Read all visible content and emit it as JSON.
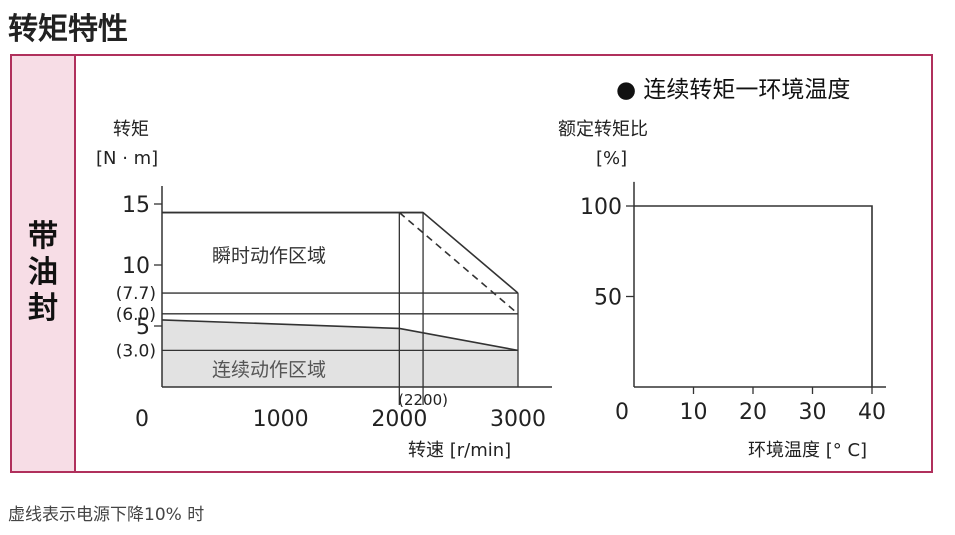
{
  "page": {
    "title": "转矩特性",
    "side_label": [
      "带",
      "油",
      "封"
    ],
    "footnote": "虚线表示电源下降10% 时"
  },
  "colors": {
    "frame": "#b0305c",
    "tab_bg": "#f7dde6",
    "continuous_fill": "#e2e2e2",
    "line": "#333333"
  },
  "chart_data": [
    {
      "type": "line",
      "ylabel": "转矩",
      "yunit": "[N · m]",
      "xlabel": "转速 [r/min]",
      "xlim": [
        0,
        3000
      ],
      "ylim": [
        0,
        15
      ],
      "x_ticks": [
        "0",
        "1000",
        "2000",
        "3000"
      ],
      "y_ticks": [
        "5",
        "10",
        "15"
      ],
      "y_ref_labels": [
        {
          "value": 7.7,
          "label": "(7.7)"
        },
        {
          "value": 6.0,
          "label": "(6.0)"
        },
        {
          "value": 3.0,
          "label": "(3.0)"
        }
      ],
      "x_ref_labels": [
        {
          "value": 2200,
          "label": "(2200)"
        }
      ],
      "regions": [
        {
          "name": "瞬时动作区域",
          "points": [
            [
              0,
              14.3
            ],
            [
              2200,
              14.3
            ],
            [
              3000,
              7.7
            ],
            [
              3000,
              0
            ],
            [
              0,
              0
            ]
          ]
        },
        {
          "name": "连续动作区域",
          "points": [
            [
              0,
              5.5
            ],
            [
              2000,
              4.8
            ],
            [
              3000,
              3.0
            ],
            [
              3000,
              0
            ],
            [
              0,
              0
            ]
          ]
        }
      ],
      "series": [
        {
          "style": "solid",
          "points": [
            [
              0,
              14.3
            ],
            [
              2200,
              14.3
            ],
            [
              3000,
              7.7
            ]
          ]
        },
        {
          "style": "dashed",
          "points": [
            [
              2000,
              14.3
            ],
            [
              3000,
              6.0
            ]
          ]
        },
        {
          "style": "solid",
          "points": [
            [
              0,
              5.5
            ],
            [
              2000,
              4.8
            ],
            [
              3000,
              3.0
            ]
          ]
        }
      ],
      "reference_lines": {
        "horizontal": [
          7.7,
          6.0,
          3.0
        ],
        "vertical": [
          2000,
          2200
        ]
      }
    },
    {
      "type": "line",
      "title": "● 连续转矩一环境温度",
      "ylabel": "额定转矩比",
      "yunit": "[%]",
      "xlabel": "环境温度 [° C]",
      "xlim": [
        0,
        40
      ],
      "ylim": [
        0,
        110
      ],
      "x_ticks": [
        "0",
        "10",
        "20",
        "30",
        "40"
      ],
      "y_ticks": [
        "50",
        "100"
      ],
      "series": [
        {
          "style": "solid",
          "points": [
            [
              0,
              100
            ],
            [
              40,
              100
            ],
            [
              40,
              0
            ]
          ]
        }
      ]
    }
  ]
}
